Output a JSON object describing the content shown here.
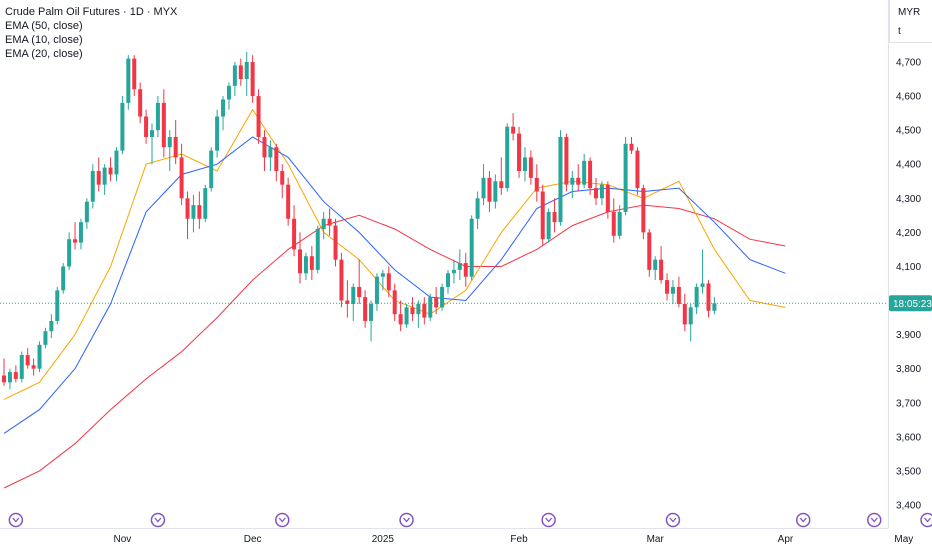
{
  "header": {
    "title": "Crude Palm Oil Futures · 1D · MYX",
    "indicators": [
      "EMA (50, close)",
      "EMA (10, close)",
      "EMA (20, close)"
    ]
  },
  "price_scale": {
    "currency": "MYR",
    "unit": "t",
    "countdown": "18:05:23"
  },
  "colors": {
    "up": "#26a69a",
    "down": "#f23645",
    "ema50": "#f23645",
    "ema10": "#f7a600",
    "ema20": "#2962ff",
    "last_price_line": "#26a69a",
    "event_icon": "#7e57c2"
  },
  "chart_data": {
    "type": "candlestick",
    "title": "Crude Palm Oil Futures · 1D · MYX",
    "y_ticks": [
      3400,
      3500,
      3600,
      3700,
      3800,
      3900,
      4000,
      4100,
      4200,
      4300,
      4400,
      4500,
      4600,
      4700
    ],
    "y_range": [
      3380,
      4810
    ],
    "x_labels": [
      "Nov",
      "Dec",
      "2025",
      "Feb",
      "Mar",
      "Apr",
      "May"
    ],
    "x_label_positions": [
      20,
      42,
      64,
      87,
      110,
      132,
      152
    ],
    "event_marker_positions": [
      2,
      26,
      47,
      68,
      92,
      113,
      135,
      156,
      147
    ],
    "last_price": 3992,
    "candles": [
      [
        3780,
        3830,
        3750,
        3760
      ],
      [
        3760,
        3800,
        3740,
        3790
      ],
      [
        3790,
        3810,
        3760,
        3770
      ],
      [
        3770,
        3850,
        3760,
        3840
      ],
      [
        3840,
        3860,
        3800,
        3810
      ],
      [
        3810,
        3830,
        3780,
        3800
      ],
      [
        3800,
        3880,
        3790,
        3870
      ],
      [
        3870,
        3920,
        3860,
        3910
      ],
      [
        3910,
        3960,
        3890,
        3940
      ],
      [
        3940,
        4040,
        3930,
        4030
      ],
      [
        4030,
        4110,
        4020,
        4100
      ],
      [
        4100,
        4200,
        4090,
        4180
      ],
      [
        4180,
        4230,
        4150,
        4170
      ],
      [
        4170,
        4240,
        4150,
        4230
      ],
      [
        4230,
        4300,
        4210,
        4290
      ],
      [
        4290,
        4400,
        4270,
        4380
      ],
      [
        4380,
        4420,
        4320,
        4340
      ],
      [
        4340,
        4400,
        4310,
        4390
      ],
      [
        4390,
        4420,
        4350,
        4370
      ],
      [
        4370,
        4450,
        4350,
        4440
      ],
      [
        4440,
        4600,
        4430,
        4580
      ],
      [
        4580,
        4720,
        4560,
        4710
      ],
      [
        4710,
        4720,
        4600,
        4620
      ],
      [
        4620,
        4640,
        4520,
        4540
      ],
      [
        4540,
        4560,
        4460,
        4480
      ],
      [
        4480,
        4520,
        4400,
        4500
      ],
      [
        4500,
        4600,
        4480,
        4580
      ],
      [
        4580,
        4620,
        4420,
        4450
      ],
      [
        4450,
        4500,
        4380,
        4480
      ],
      [
        4480,
        4530,
        4400,
        4420
      ],
      [
        4420,
        4460,
        4280,
        4300
      ],
      [
        4300,
        4320,
        4180,
        4240
      ],
      [
        4240,
        4310,
        4200,
        4280
      ],
      [
        4280,
        4320,
        4210,
        4240
      ],
      [
        4240,
        4340,
        4230,
        4330
      ],
      [
        4330,
        4450,
        4320,
        4440
      ],
      [
        4440,
        4560,
        4420,
        4540
      ],
      [
        4540,
        4600,
        4500,
        4590
      ],
      [
        4590,
        4640,
        4560,
        4630
      ],
      [
        4630,
        4700,
        4600,
        4690
      ],
      [
        4690,
        4710,
        4630,
        4650
      ],
      [
        4650,
        4730,
        4600,
        4700
      ],
      [
        4700,
        4720,
        4580,
        4600
      ],
      [
        4600,
        4620,
        4460,
        4480
      ],
      [
        4480,
        4500,
        4380,
        4420
      ],
      [
        4420,
        4470,
        4380,
        4450
      ],
      [
        4450,
        4460,
        4350,
        4380
      ],
      [
        4380,
        4400,
        4300,
        4340
      ],
      [
        4340,
        4360,
        4220,
        4240
      ],
      [
        4240,
        4280,
        4130,
        4150
      ],
      [
        4150,
        4200,
        4050,
        4080
      ],
      [
        4080,
        4140,
        4060,
        4130
      ],
      [
        4130,
        4160,
        4060,
        4090
      ],
      [
        4090,
        4220,
        4080,
        4210
      ],
      [
        4210,
        4260,
        4180,
        4240
      ],
      [
        4240,
        4270,
        4190,
        4220
      ],
      [
        4220,
        4240,
        4100,
        4120
      ],
      [
        4120,
        4140,
        3980,
        4000
      ],
      [
        4000,
        4060,
        3950,
        3990
      ],
      [
        3990,
        4050,
        3940,
        4040
      ],
      [
        4040,
        4120,
        3990,
        4010
      ],
      [
        4010,
        4030,
        3920,
        3940
      ],
      [
        3940,
        4000,
        3880,
        3990
      ],
      [
        3990,
        4080,
        3970,
        4070
      ],
      [
        4070,
        4090,
        4030,
        4080
      ],
      [
        4080,
        4100,
        4010,
        4030
      ],
      [
        4030,
        4050,
        3940,
        3960
      ],
      [
        3960,
        4000,
        3910,
        3930
      ],
      [
        3930,
        3990,
        3920,
        3980
      ],
      [
        3980,
        4010,
        3940,
        3960
      ],
      [
        3960,
        4000,
        3920,
        3990
      ],
      [
        3990,
        4010,
        3930,
        3950
      ],
      [
        3950,
        4020,
        3940,
        4010
      ],
      [
        4010,
        4040,
        3960,
        3980
      ],
      [
        3980,
        4050,
        3970,
        4040
      ],
      [
        4040,
        4090,
        4020,
        4080
      ],
      [
        4080,
        4120,
        4050,
        4090
      ],
      [
        4090,
        4150,
        4060,
        4110
      ],
      [
        4110,
        4140,
        4040,
        4070
      ],
      [
        4070,
        4250,
        4060,
        4240
      ],
      [
        4240,
        4320,
        4210,
        4300
      ],
      [
        4300,
        4400,
        4280,
        4360
      ],
      [
        4360,
        4380,
        4260,
        4290
      ],
      [
        4290,
        4370,
        4270,
        4350
      ],
      [
        4350,
        4420,
        4310,
        4330
      ],
      [
        4330,
        4520,
        4320,
        4510
      ],
      [
        4510,
        4550,
        4470,
        4490
      ],
      [
        4490,
        4510,
        4360,
        4380
      ],
      [
        4380,
        4450,
        4350,
        4420
      ],
      [
        4420,
        4440,
        4340,
        4360
      ],
      [
        4360,
        4400,
        4290,
        4320
      ],
      [
        4320,
        4340,
        4160,
        4180
      ],
      [
        4180,
        4270,
        4170,
        4260
      ],
      [
        4260,
        4300,
        4200,
        4230
      ],
      [
        4230,
        4500,
        4220,
        4480
      ],
      [
        4480,
        4490,
        4320,
        4340
      ],
      [
        4340,
        4380,
        4300,
        4360
      ],
      [
        4360,
        4400,
        4320,
        4340
      ],
      [
        4340,
        4430,
        4330,
        4410
      ],
      [
        4410,
        4420,
        4310,
        4330
      ],
      [
        4330,
        4360,
        4280,
        4300
      ],
      [
        4300,
        4350,
        4280,
        4340
      ],
      [
        4340,
        4350,
        4240,
        4260
      ],
      [
        4260,
        4300,
        4170,
        4190
      ],
      [
        4190,
        4280,
        4180,
        4260
      ],
      [
        4260,
        4480,
        4250,
        4460
      ],
      [
        4460,
        4480,
        4430,
        4440
      ],
      [
        4440,
        4450,
        4310,
        4330
      ],
      [
        4330,
        4340,
        4180,
        4200
      ],
      [
        4200,
        4210,
        4070,
        4090
      ],
      [
        4090,
        4130,
        4060,
        4120
      ],
      [
        4120,
        4160,
        4050,
        4060
      ],
      [
        4060,
        4080,
        4000,
        4020
      ],
      [
        4020,
        4060,
        3990,
        4040
      ],
      [
        4040,
        4070,
        3980,
        3990
      ],
      [
        3990,
        4020,
        3910,
        3930
      ],
      [
        3930,
        3990,
        3880,
        3980
      ],
      [
        3980,
        4050,
        3960,
        4040
      ],
      [
        4040,
        4150,
        4020,
        4050
      ],
      [
        4050,
        4060,
        3950,
        3970
      ],
      [
        3970,
        4010,
        3960,
        3992
      ]
    ],
    "series": [
      {
        "name": "EMA (50, close)",
        "values": [
          [
            0,
            3450
          ],
          [
            6,
            3500
          ],
          [
            12,
            3580
          ],
          [
            18,
            3680
          ],
          [
            24,
            3770
          ],
          [
            30,
            3850
          ],
          [
            36,
            3950
          ],
          [
            42,
            4060
          ],
          [
            48,
            4150
          ],
          [
            54,
            4220
          ],
          [
            60,
            4250
          ],
          [
            66,
            4210
          ],
          [
            72,
            4150
          ],
          [
            78,
            4100
          ],
          [
            84,
            4100
          ],
          [
            90,
            4150
          ],
          [
            96,
            4220
          ],
          [
            102,
            4260
          ],
          [
            108,
            4280
          ],
          [
            114,
            4270
          ],
          [
            120,
            4240
          ],
          [
            126,
            4180
          ],
          [
            132,
            4160
          ]
        ]
      },
      {
        "name": "EMA (10, close)",
        "values": [
          [
            0,
            3710
          ],
          [
            6,
            3760
          ],
          [
            12,
            3900
          ],
          [
            18,
            4100
          ],
          [
            24,
            4400
          ],
          [
            30,
            4430
          ],
          [
            36,
            4380
          ],
          [
            42,
            4560
          ],
          [
            48,
            4400
          ],
          [
            54,
            4200
          ],
          [
            60,
            4120
          ],
          [
            66,
            4000
          ],
          [
            72,
            3960
          ],
          [
            78,
            4030
          ],
          [
            84,
            4200
          ],
          [
            90,
            4330
          ],
          [
            96,
            4350
          ],
          [
            102,
            4340
          ],
          [
            108,
            4300
          ],
          [
            114,
            4350
          ],
          [
            120,
            4150
          ],
          [
            126,
            4000
          ],
          [
            132,
            3980
          ]
        ]
      },
      {
        "name": "EMA (20, close)",
        "values": [
          [
            0,
            3610
          ],
          [
            6,
            3680
          ],
          [
            12,
            3800
          ],
          [
            18,
            3990
          ],
          [
            24,
            4260
          ],
          [
            30,
            4370
          ],
          [
            36,
            4400
          ],
          [
            42,
            4480
          ],
          [
            48,
            4420
          ],
          [
            54,
            4290
          ],
          [
            60,
            4200
          ],
          [
            66,
            4090
          ],
          [
            72,
            4010
          ],
          [
            78,
            4000
          ],
          [
            84,
            4120
          ],
          [
            90,
            4270
          ],
          [
            96,
            4320
          ],
          [
            102,
            4330
          ],
          [
            108,
            4320
          ],
          [
            114,
            4330
          ],
          [
            120,
            4230
          ],
          [
            126,
            4120
          ],
          [
            132,
            4080
          ]
        ]
      }
    ]
  }
}
